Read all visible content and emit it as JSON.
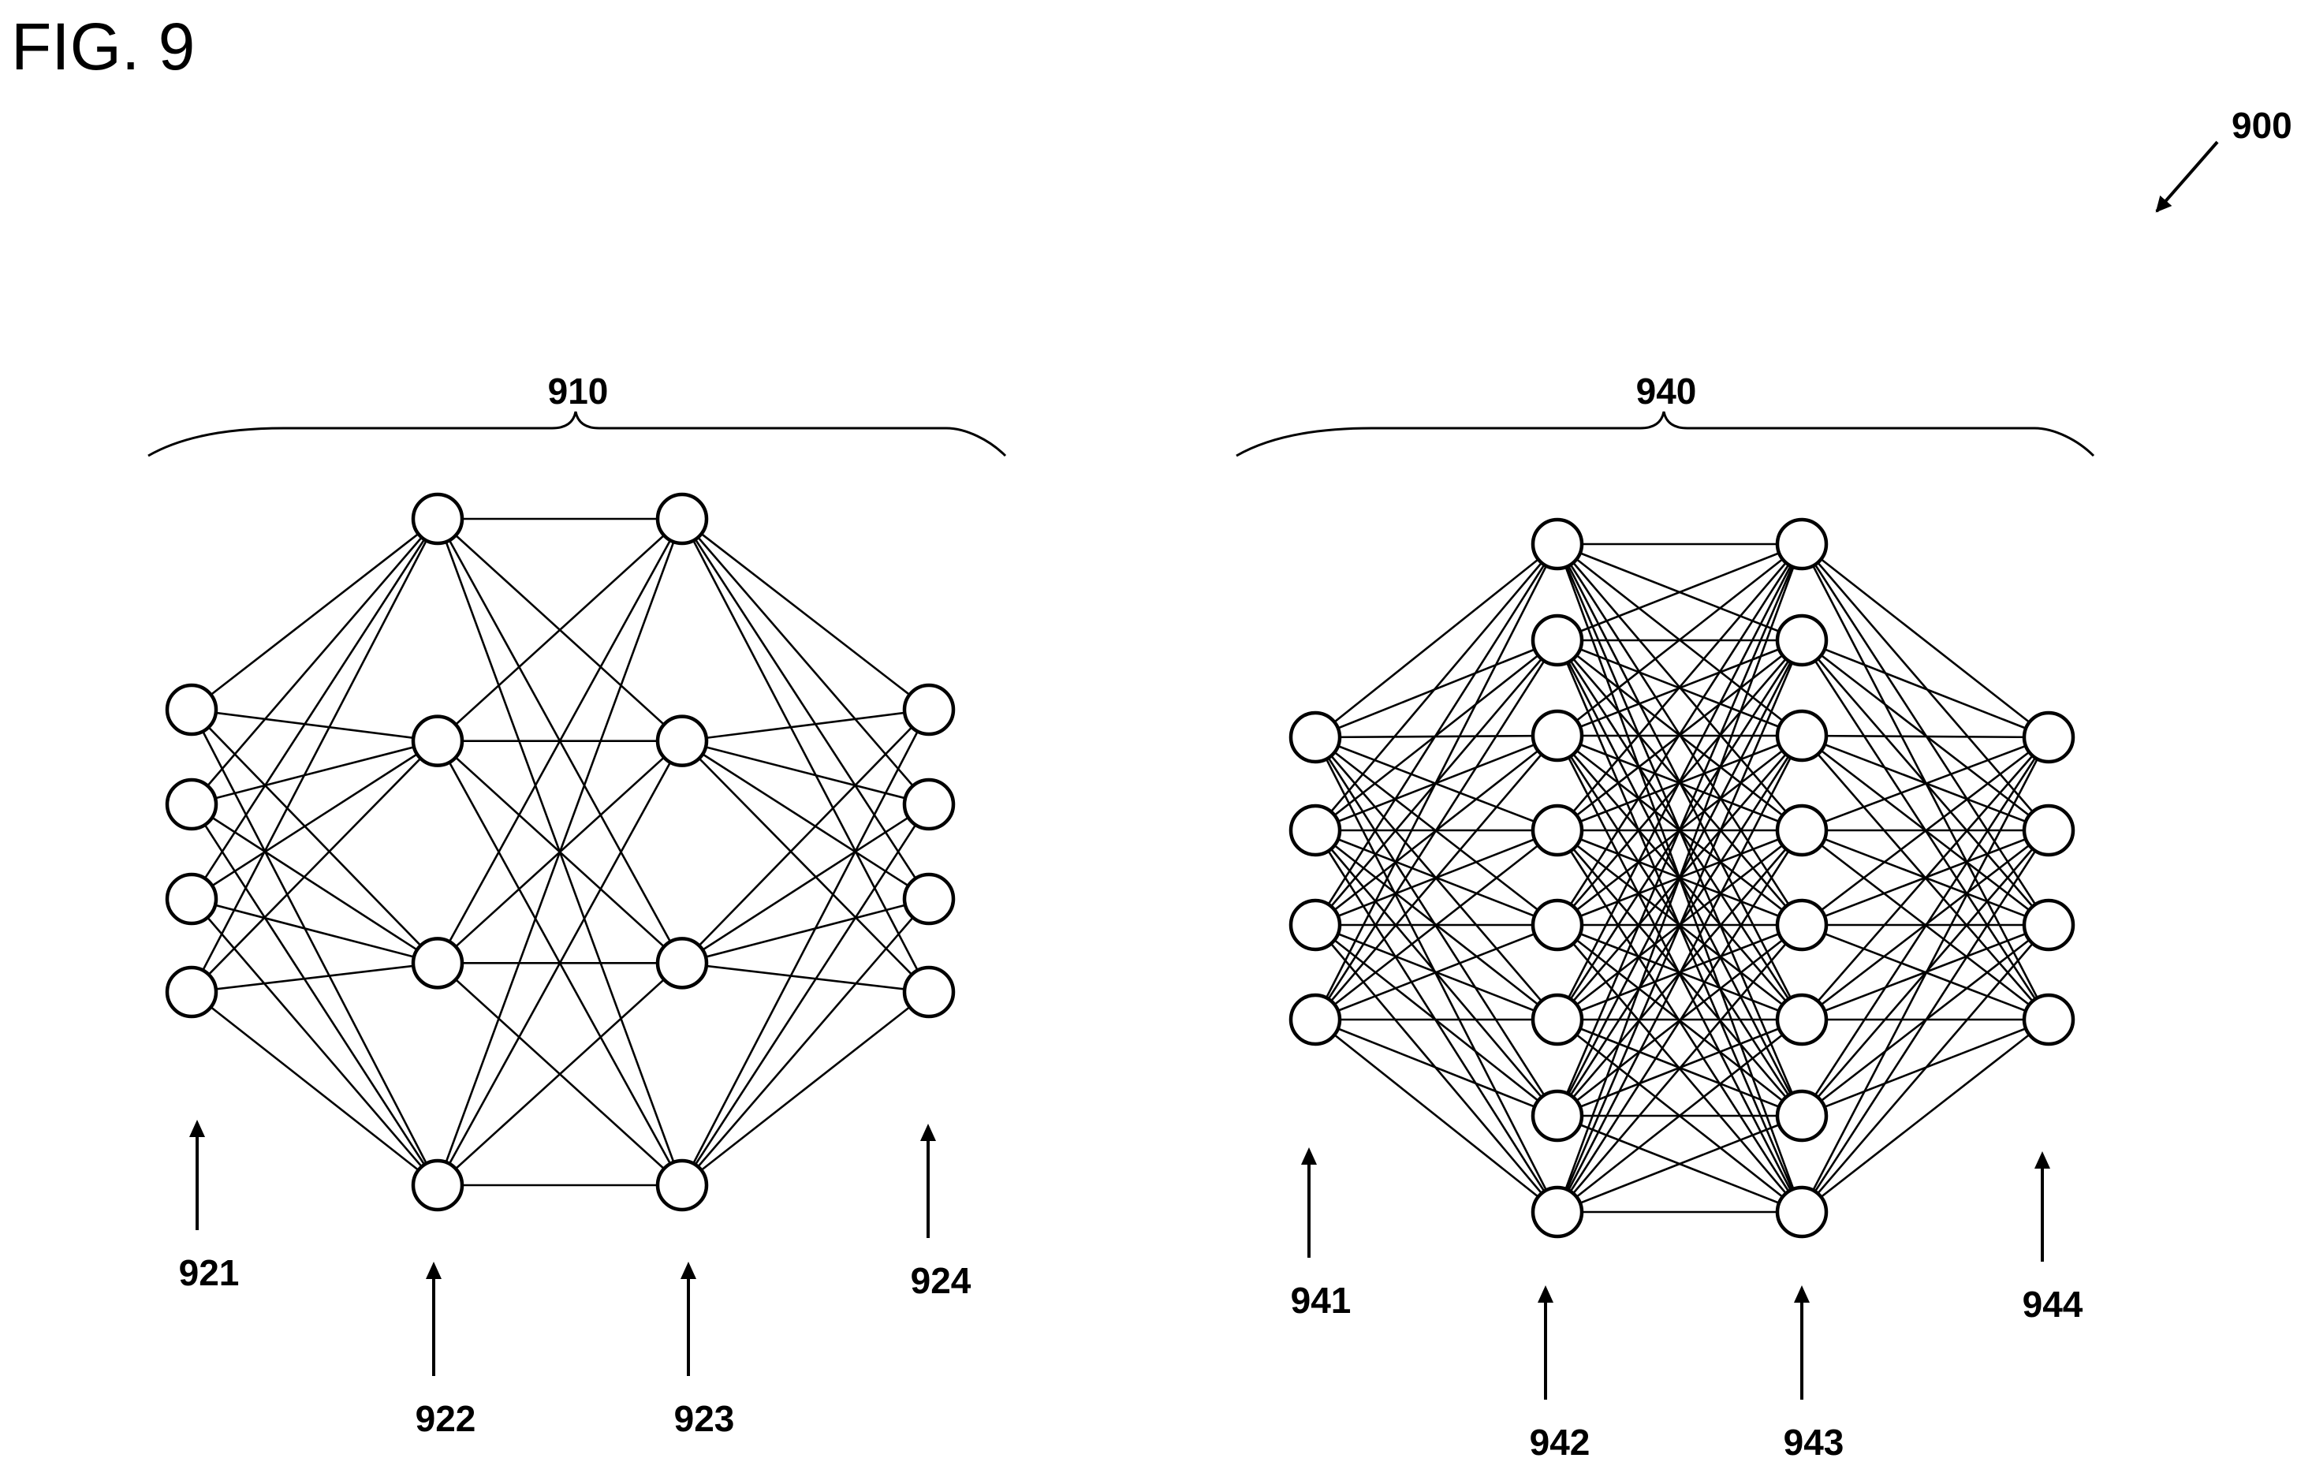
{
  "figure": {
    "title": "FIG. 9",
    "reference": "900"
  },
  "networks": [
    {
      "label": "910",
      "layers": [
        {
          "label": "921",
          "nodes": 4
        },
        {
          "label": "922",
          "nodes": 4
        },
        {
          "label": "923",
          "nodes": 4
        },
        {
          "label": "924",
          "nodes": 4
        }
      ]
    },
    {
      "label": "940",
      "layers": [
        {
          "label": "941",
          "nodes": 4
        },
        {
          "label": "942",
          "nodes": 8
        },
        {
          "label": "943",
          "nodes": 8
        },
        {
          "label": "944",
          "nodes": 4
        }
      ]
    }
  ]
}
